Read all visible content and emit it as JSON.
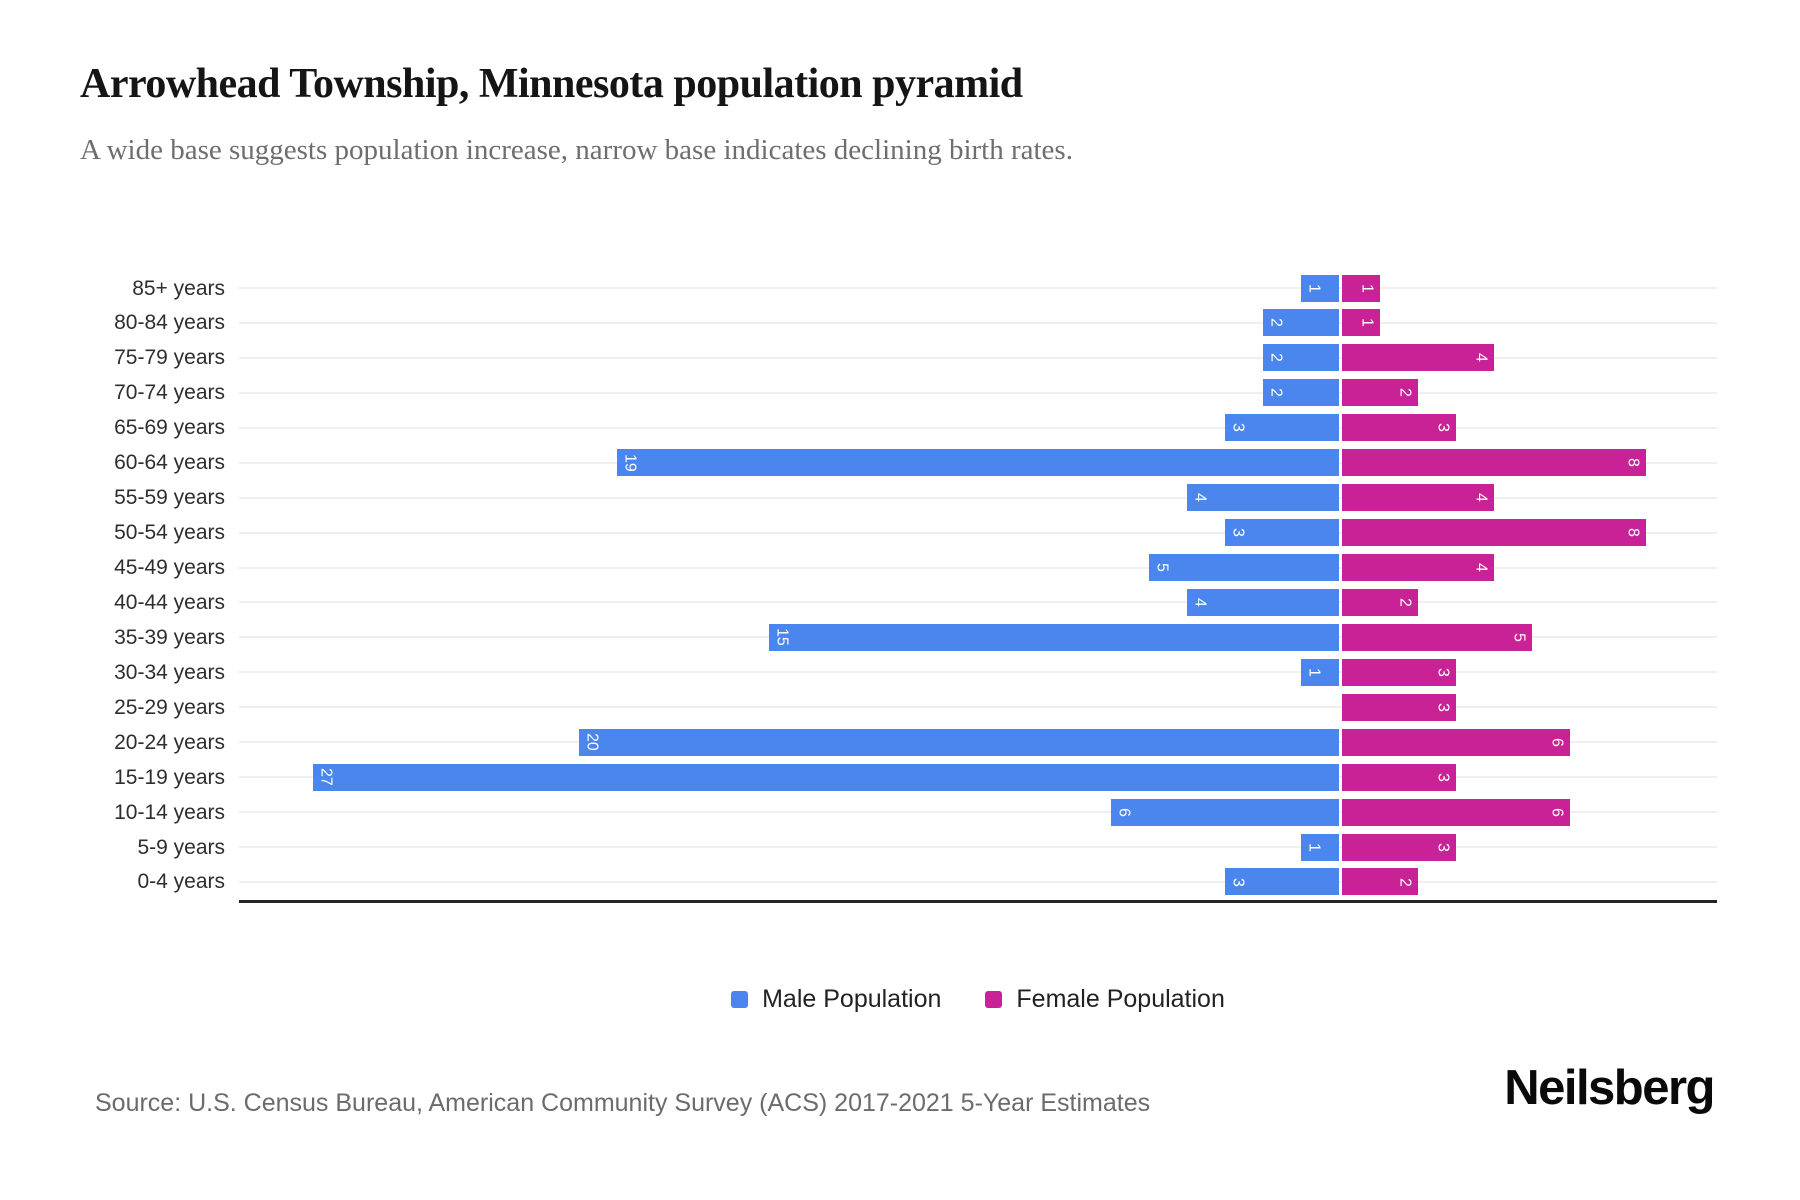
{
  "header": {
    "title": "Arrowhead Township, Minnesota population pyramid",
    "subtitle": "A wide base suggests population increase, narrow base indicates declining birth rates."
  },
  "legend": {
    "male_label": "Male Population",
    "female_label": "Female Population"
  },
  "footer": {
    "source": "Source: U.S. Census Bureau, American Community Survey (ACS) 2017-2021 5-Year Estimates",
    "brand": "Neilsberg"
  },
  "colors": {
    "male": "#4a86ee",
    "female": "#c92196",
    "gridline": "#efefef",
    "axis_line": "#252525",
    "title": "#151515",
    "subtitle": "#6e6e6e",
    "bar_label": "#ffffff"
  },
  "chart_data": {
    "type": "bar",
    "variant": "population-pyramid",
    "title": "Arrowhead Township, Minnesota population pyramid",
    "categories": [
      "85+ years",
      "80-84 years",
      "75-79 years",
      "70-74 years",
      "65-69 years",
      "60-64 years",
      "55-59 years",
      "50-54 years",
      "45-49 years",
      "40-44 years",
      "35-39 years",
      "30-34 years",
      "25-29 years",
      "20-24 years",
      "15-19 years",
      "10-14 years",
      "5-9 years",
      "0-4 years"
    ],
    "series": [
      {
        "name": "Male Population",
        "side": "left",
        "color": "#4a86ee",
        "values": [
          1,
          2,
          2,
          2,
          3,
          19,
          4,
          3,
          5,
          4,
          15,
          1,
          0,
          20,
          27,
          6,
          1,
          3
        ]
      },
      {
        "name": "Female Population",
        "side": "right",
        "color": "#c92196",
        "values": [
          1,
          1,
          4,
          2,
          3,
          8,
          4,
          8,
          4,
          2,
          5,
          3,
          3,
          6,
          3,
          6,
          3,
          2
        ]
      }
    ],
    "bar_value_labels": "shown inside bar ends, rotated 90deg, white",
    "x_axis_ticks_visible": false,
    "grid": true,
    "legend_position": "bottom"
  }
}
